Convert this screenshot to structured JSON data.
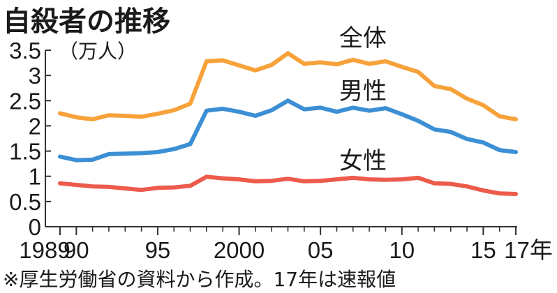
{
  "title": "自殺者の推移",
  "footnote": "※厚生労働省の資料から作成。17年は速報値",
  "chart_data": {
    "type": "line",
    "title": "自殺者の推移",
    "ylabel": "（万人）",
    "xlabel": "",
    "ylim": [
      0,
      3.5
    ],
    "xlim": [
      1989,
      2017
    ],
    "y_ticks": [
      0,
      0.5,
      1,
      1.5,
      2,
      2.5,
      3,
      3.5
    ],
    "y_tick_labels": [
      "0",
      "0.5",
      "1",
      "1.5",
      "2",
      "2.5",
      "3",
      "3.5"
    ],
    "x_ticks": [
      1989,
      1990,
      1995,
      2000,
      2005,
      2010,
      2015,
      2017
    ],
    "x_tick_labels": [
      "1989",
      "90",
      "95",
      "2000",
      "05",
      "10",
      "15",
      "17年"
    ],
    "grid": false,
    "legend": "direct labels",
    "x": [
      1989,
      1990,
      1991,
      1992,
      1993,
      1994,
      1995,
      1996,
      1997,
      1998,
      1999,
      2000,
      2001,
      2002,
      2003,
      2004,
      2005,
      2006,
      2007,
      2008,
      2009,
      2010,
      2011,
      2012,
      2013,
      2014,
      2015,
      2016,
      2017
    ],
    "series": [
      {
        "name": "全体",
        "color": "#f7a23a",
        "values": [
          2.25,
          2.17,
          2.13,
          2.21,
          2.2,
          2.18,
          2.24,
          2.31,
          2.44,
          3.28,
          3.3,
          3.2,
          3.1,
          3.21,
          3.44,
          3.23,
          3.26,
          3.22,
          3.31,
          3.23,
          3.28,
          3.17,
          3.07,
          2.79,
          2.73,
          2.54,
          2.41,
          2.19,
          2.13
        ]
      },
      {
        "name": "男性",
        "color": "#3c8fd4",
        "values": [
          1.39,
          1.32,
          1.33,
          1.44,
          1.45,
          1.46,
          1.48,
          1.54,
          1.64,
          2.3,
          2.34,
          2.28,
          2.2,
          2.31,
          2.5,
          2.33,
          2.36,
          2.28,
          2.36,
          2.3,
          2.35,
          2.23,
          2.1,
          1.93,
          1.88,
          1.74,
          1.67,
          1.52,
          1.48
        ]
      },
      {
        "name": "女性",
        "color": "#ec5b4c",
        "values": [
          0.86,
          0.83,
          0.8,
          0.79,
          0.76,
          0.73,
          0.77,
          0.78,
          0.81,
          0.99,
          0.96,
          0.94,
          0.9,
          0.91,
          0.95,
          0.9,
          0.91,
          0.94,
          0.97,
          0.94,
          0.93,
          0.94,
          0.97,
          0.86,
          0.85,
          0.8,
          0.72,
          0.66,
          0.65
        ]
      }
    ]
  }
}
